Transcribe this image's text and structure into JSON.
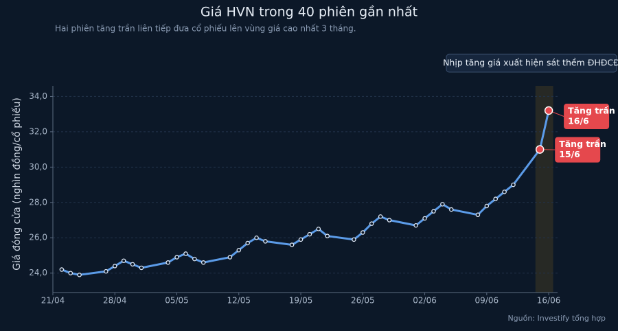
{
  "chart_data": {
    "type": "line",
    "title": "Giá HVN trong 40 phiên gần nhất",
    "subtitle": "Hai phiên tăng trần liên tiếp đưa cổ phiếu lên vùng giá cao nhất 3 tháng.",
    "y_label": "Giá đóng cửa (nghìn đồng/cổ phiếu)",
    "source": "Nguồn: Investify tổng hợp",
    "callout": "Nhịp tăng giá xuất hiện sát thềm ĐHĐCĐ",
    "color": "#5b9be8",
    "x": [
      "22/04",
      "23/04",
      "24/04",
      "27/04",
      "28/04",
      "29/04",
      "30/04",
      "01/05",
      "04/05",
      "05/05",
      "06/05",
      "07/05",
      "08/05",
      "11/05",
      "12/05",
      "13/05",
      "14/05",
      "15/05",
      "18/05",
      "19/05",
      "20/05",
      "21/05",
      "22/05",
      "25/05",
      "26/05",
      "27/05",
      "28/05",
      "29/05",
      "01/06",
      "02/06",
      "03/06",
      "04/06",
      "05/06",
      "08/06",
      "09/06",
      "10/06",
      "11/06",
      "12/06",
      "15/06",
      "16/06"
    ],
    "values": [
      24.2,
      24.0,
      23.9,
      24.1,
      24.4,
      24.7,
      24.5,
      24.3,
      24.6,
      24.9,
      25.1,
      24.8,
      24.6,
      24.9,
      25.3,
      25.7,
      26.0,
      25.8,
      25.6,
      25.9,
      26.2,
      26.5,
      26.1,
      25.9,
      26.3,
      26.8,
      27.2,
      27.0,
      26.7,
      27.1,
      27.5,
      27.9,
      27.6,
      27.3,
      27.8,
      28.2,
      28.6,
      29.0,
      31.0,
      33.2
    ],
    "xlim": [
      "21/04",
      "17/06"
    ],
    "xticks": [
      "21/04",
      "28/04",
      "05/05",
      "12/05",
      "19/05",
      "26/05",
      "02/06",
      "09/06",
      "16/06"
    ],
    "ylim": [
      22.9,
      34.6
    ],
    "yticks": [
      {
        "value": 24,
        "label": "24,0"
      },
      {
        "value": 26,
        "label": "26,0"
      },
      {
        "value": 28,
        "label": "28,0"
      },
      {
        "value": 30,
        "label": "30,0"
      },
      {
        "value": 32,
        "label": "32,0"
      },
      {
        "value": 34,
        "label": "34,0"
      }
    ],
    "grid": true,
    "highlight": [
      "15/06",
      "16/06"
    ],
    "annotations": [
      {
        "x": "15/06",
        "text": [
          "Tăng trần",
          "15/6"
        ]
      },
      {
        "x": "16/06",
        "text": [
          "Tăng trần",
          "16/6"
        ]
      }
    ]
  }
}
